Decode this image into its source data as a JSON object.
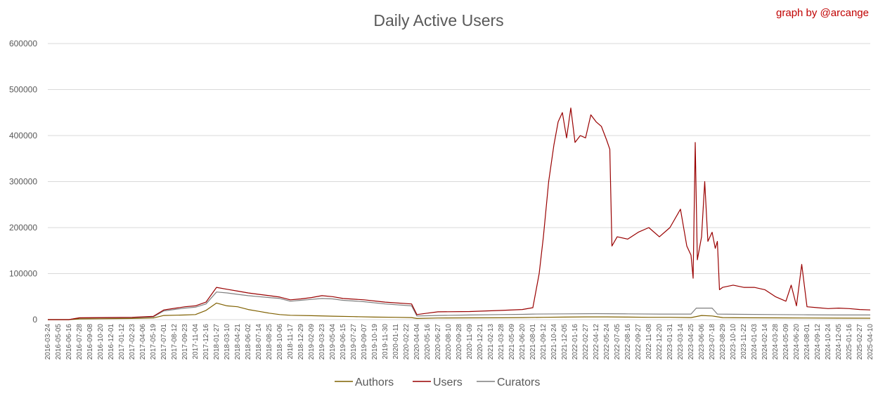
{
  "chart_data": {
    "type": "line",
    "title": "Daily Active Users",
    "credit": "graph by @arcange",
    "xlabel": "",
    "ylabel": "",
    "ylim": [
      0,
      600000
    ],
    "yticks": [
      0,
      100000,
      200000,
      300000,
      400000,
      500000,
      600000
    ],
    "grid": true,
    "legend_position": "bottom",
    "x_tick_labels": [
      "2016-03-24",
      "2016-05-05",
      "2016-06-16",
      "2016-07-28",
      "2016-09-08",
      "2016-10-20",
      "2016-12-01",
      "2017-01-12",
      "2017-02-23",
      "2017-04-06",
      "2017-05-19",
      "2017-07-01",
      "2017-08-12",
      "2017-09-23",
      "2017-11-04",
      "2017-12-16",
      "2018-01-27",
      "2018-03-10",
      "2018-04-21",
      "2018-06-02",
      "2018-07-14",
      "2018-08-25",
      "2018-10-06",
      "2018-11-17",
      "2018-12-29",
      "2019-02-09",
      "2019-03-23",
      "2019-05-04",
      "2019-06-15",
      "2019-07-27",
      "2019-09-07",
      "2019-10-19",
      "2019-11-30",
      "2020-01-11",
      "2020-02-22",
      "2020-04-04",
      "2020-05-16",
      "2020-06-27",
      "2020-08-10",
      "2020-09-28",
      "2020-11-09",
      "2020-12-21",
      "2021-02-13",
      "2021-03-28",
      "2021-05-09",
      "2021-06-20",
      "2021-08-01",
      "2021-09-12",
      "2021-10-24",
      "2021-12-05",
      "2022-01-16",
      "2022-02-27",
      "2022-04-12",
      "2022-05-24",
      "2022-07-05",
      "2022-08-16",
      "2022-09-27",
      "2022-11-08",
      "2022-12-20",
      "2023-01-31",
      "2023-03-14",
      "2023-04-25",
      "2023-06-06",
      "2023-07-18",
      "2023-08-29",
      "2023-10-10",
      "2023-11-22",
      "2024-01-03",
      "2024-02-14",
      "2024-03-28",
      "2024-05-09",
      "2024-06-20",
      "2024-08-01",
      "2024-09-12",
      "2024-10-24",
      "2024-12-05",
      "2025-01-16",
      "2025-02-27",
      "2025-04-10"
    ],
    "series": [
      {
        "name": "Authors",
        "color": "#7f6000",
        "points": [
          [
            0,
            0
          ],
          [
            2,
            0
          ],
          [
            3,
            1500
          ],
          [
            5,
            1800
          ],
          [
            8,
            2500
          ],
          [
            10,
            3500
          ],
          [
            11,
            9000
          ],
          [
            13,
            10000
          ],
          [
            14,
            11000
          ],
          [
            15,
            20000
          ],
          [
            16,
            36000
          ],
          [
            17,
            30000
          ],
          [
            18,
            28000
          ],
          [
            19,
            22000
          ],
          [
            20,
            18000
          ],
          [
            21,
            14000
          ],
          [
            22,
            11000
          ],
          [
            23,
            9500
          ],
          [
            25,
            8500
          ],
          [
            27,
            7500
          ],
          [
            29,
            6500
          ],
          [
            31,
            5500
          ],
          [
            33,
            5000
          ],
          [
            34.5,
            4500
          ],
          [
            35,
            2500
          ],
          [
            37,
            3500
          ],
          [
            40,
            3800
          ],
          [
            43,
            4000
          ],
          [
            45,
            4500
          ],
          [
            47,
            5000
          ],
          [
            49,
            5500
          ],
          [
            51,
            6000
          ],
          [
            53,
            6000
          ],
          [
            55,
            5500
          ],
          [
            57,
            5000
          ],
          [
            59,
            5000
          ],
          [
            61,
            4500
          ],
          [
            62,
            9000
          ],
          [
            63,
            8000
          ],
          [
            64,
            4500
          ],
          [
            66,
            4000
          ],
          [
            69,
            3800
          ],
          [
            72,
            3500
          ],
          [
            75,
            3200
          ],
          [
            78,
            3000
          ]
        ]
      },
      {
        "name": "Users",
        "color": "#990000",
        "points": [
          [
            0,
            0
          ],
          [
            2,
            0
          ],
          [
            3,
            4000
          ],
          [
            5,
            4500
          ],
          [
            8,
            5000
          ],
          [
            10,
            7000
          ],
          [
            11,
            21000
          ],
          [
            13,
            28000
          ],
          [
            14,
            30000
          ],
          [
            15,
            38000
          ],
          [
            16,
            70000
          ],
          [
            17,
            66000
          ],
          [
            18,
            62000
          ],
          [
            19,
            58000
          ],
          [
            20,
            55000
          ],
          [
            21,
            52000
          ],
          [
            22,
            49000
          ],
          [
            23,
            43000
          ],
          [
            24,
            45000
          ],
          [
            25,
            48000
          ],
          [
            26,
            52000
          ],
          [
            27,
            50000
          ],
          [
            28,
            46000
          ],
          [
            30,
            43000
          ],
          [
            32,
            38000
          ],
          [
            34.5,
            34000
          ],
          [
            35,
            11000
          ],
          [
            36,
            14000
          ],
          [
            37,
            17000
          ],
          [
            40,
            17500
          ],
          [
            43,
            20000
          ],
          [
            45,
            22000
          ],
          [
            46,
            26000
          ],
          [
            46.6,
            100000
          ],
          [
            47,
            180000
          ],
          [
            47.5,
            300000
          ],
          [
            48,
            380000
          ],
          [
            48.4,
            430000
          ],
          [
            48.8,
            450000
          ],
          [
            49.2,
            395000
          ],
          [
            49.6,
            460000
          ],
          [
            50,
            385000
          ],
          [
            50.5,
            400000
          ],
          [
            51,
            395000
          ],
          [
            51.5,
            445000
          ],
          [
            52,
            430000
          ],
          [
            52.5,
            420000
          ],
          [
            53,
            390000
          ],
          [
            53.3,
            370000
          ],
          [
            53.5,
            160000
          ],
          [
            54,
            180000
          ],
          [
            55,
            175000
          ],
          [
            56,
            190000
          ],
          [
            57,
            200000
          ],
          [
            58,
            180000
          ],
          [
            59,
            200000
          ],
          [
            60,
            240000
          ],
          [
            60.6,
            160000
          ],
          [
            61,
            140000
          ],
          [
            61.2,
            90000
          ],
          [
            61.4,
            385000
          ],
          [
            61.6,
            130000
          ],
          [
            62,
            180000
          ],
          [
            62.3,
            300000
          ],
          [
            62.6,
            170000
          ],
          [
            63,
            190000
          ],
          [
            63.3,
            155000
          ],
          [
            63.5,
            170000
          ],
          [
            63.7,
            65000
          ],
          [
            64,
            70000
          ],
          [
            65,
            75000
          ],
          [
            66,
            70000
          ],
          [
            67,
            70000
          ],
          [
            68,
            65000
          ],
          [
            69,
            50000
          ],
          [
            70,
            40000
          ],
          [
            70.5,
            75000
          ],
          [
            71,
            30000
          ],
          [
            71.5,
            120000
          ],
          [
            72,
            28000
          ],
          [
            73,
            26000
          ],
          [
            74,
            24000
          ],
          [
            75,
            25000
          ],
          [
            76,
            24000
          ],
          [
            77,
            22000
          ],
          [
            78,
            21000
          ]
        ]
      },
      {
        "name": "Curators",
        "color": "#7f7f7f",
        "points": [
          [
            0,
            0
          ],
          [
            2,
            0
          ],
          [
            3,
            3500
          ],
          [
            5,
            4000
          ],
          [
            8,
            4500
          ],
          [
            10,
            6000
          ],
          [
            11,
            19000
          ],
          [
            13,
            25000
          ],
          [
            14,
            27000
          ],
          [
            15,
            34000
          ],
          [
            16,
            60000
          ],
          [
            17,
            58000
          ],
          [
            18,
            55000
          ],
          [
            19,
            52000
          ],
          [
            20,
            50000
          ],
          [
            21,
            48000
          ],
          [
            22,
            46000
          ],
          [
            23,
            40000
          ],
          [
            24,
            42000
          ],
          [
            25,
            44000
          ],
          [
            26,
            46000
          ],
          [
            27,
            45000
          ],
          [
            28,
            42000
          ],
          [
            30,
            39000
          ],
          [
            32,
            34000
          ],
          [
            34.5,
            30000
          ],
          [
            35,
            8000
          ],
          [
            37,
            9000
          ],
          [
            40,
            10000
          ],
          [
            43,
            11000
          ],
          [
            45,
            11500
          ],
          [
            46,
            12000
          ],
          [
            49,
            12500
          ],
          [
            52,
            13000
          ],
          [
            55,
            12500
          ],
          [
            58,
            12000
          ],
          [
            61,
            12000
          ],
          [
            61.5,
            25000
          ],
          [
            63,
            25000
          ],
          [
            63.5,
            12000
          ],
          [
            66,
            11500
          ],
          [
            69,
            11000
          ],
          [
            72,
            10500
          ],
          [
            75,
            10000
          ],
          [
            78,
            10000
          ]
        ]
      }
    ]
  }
}
